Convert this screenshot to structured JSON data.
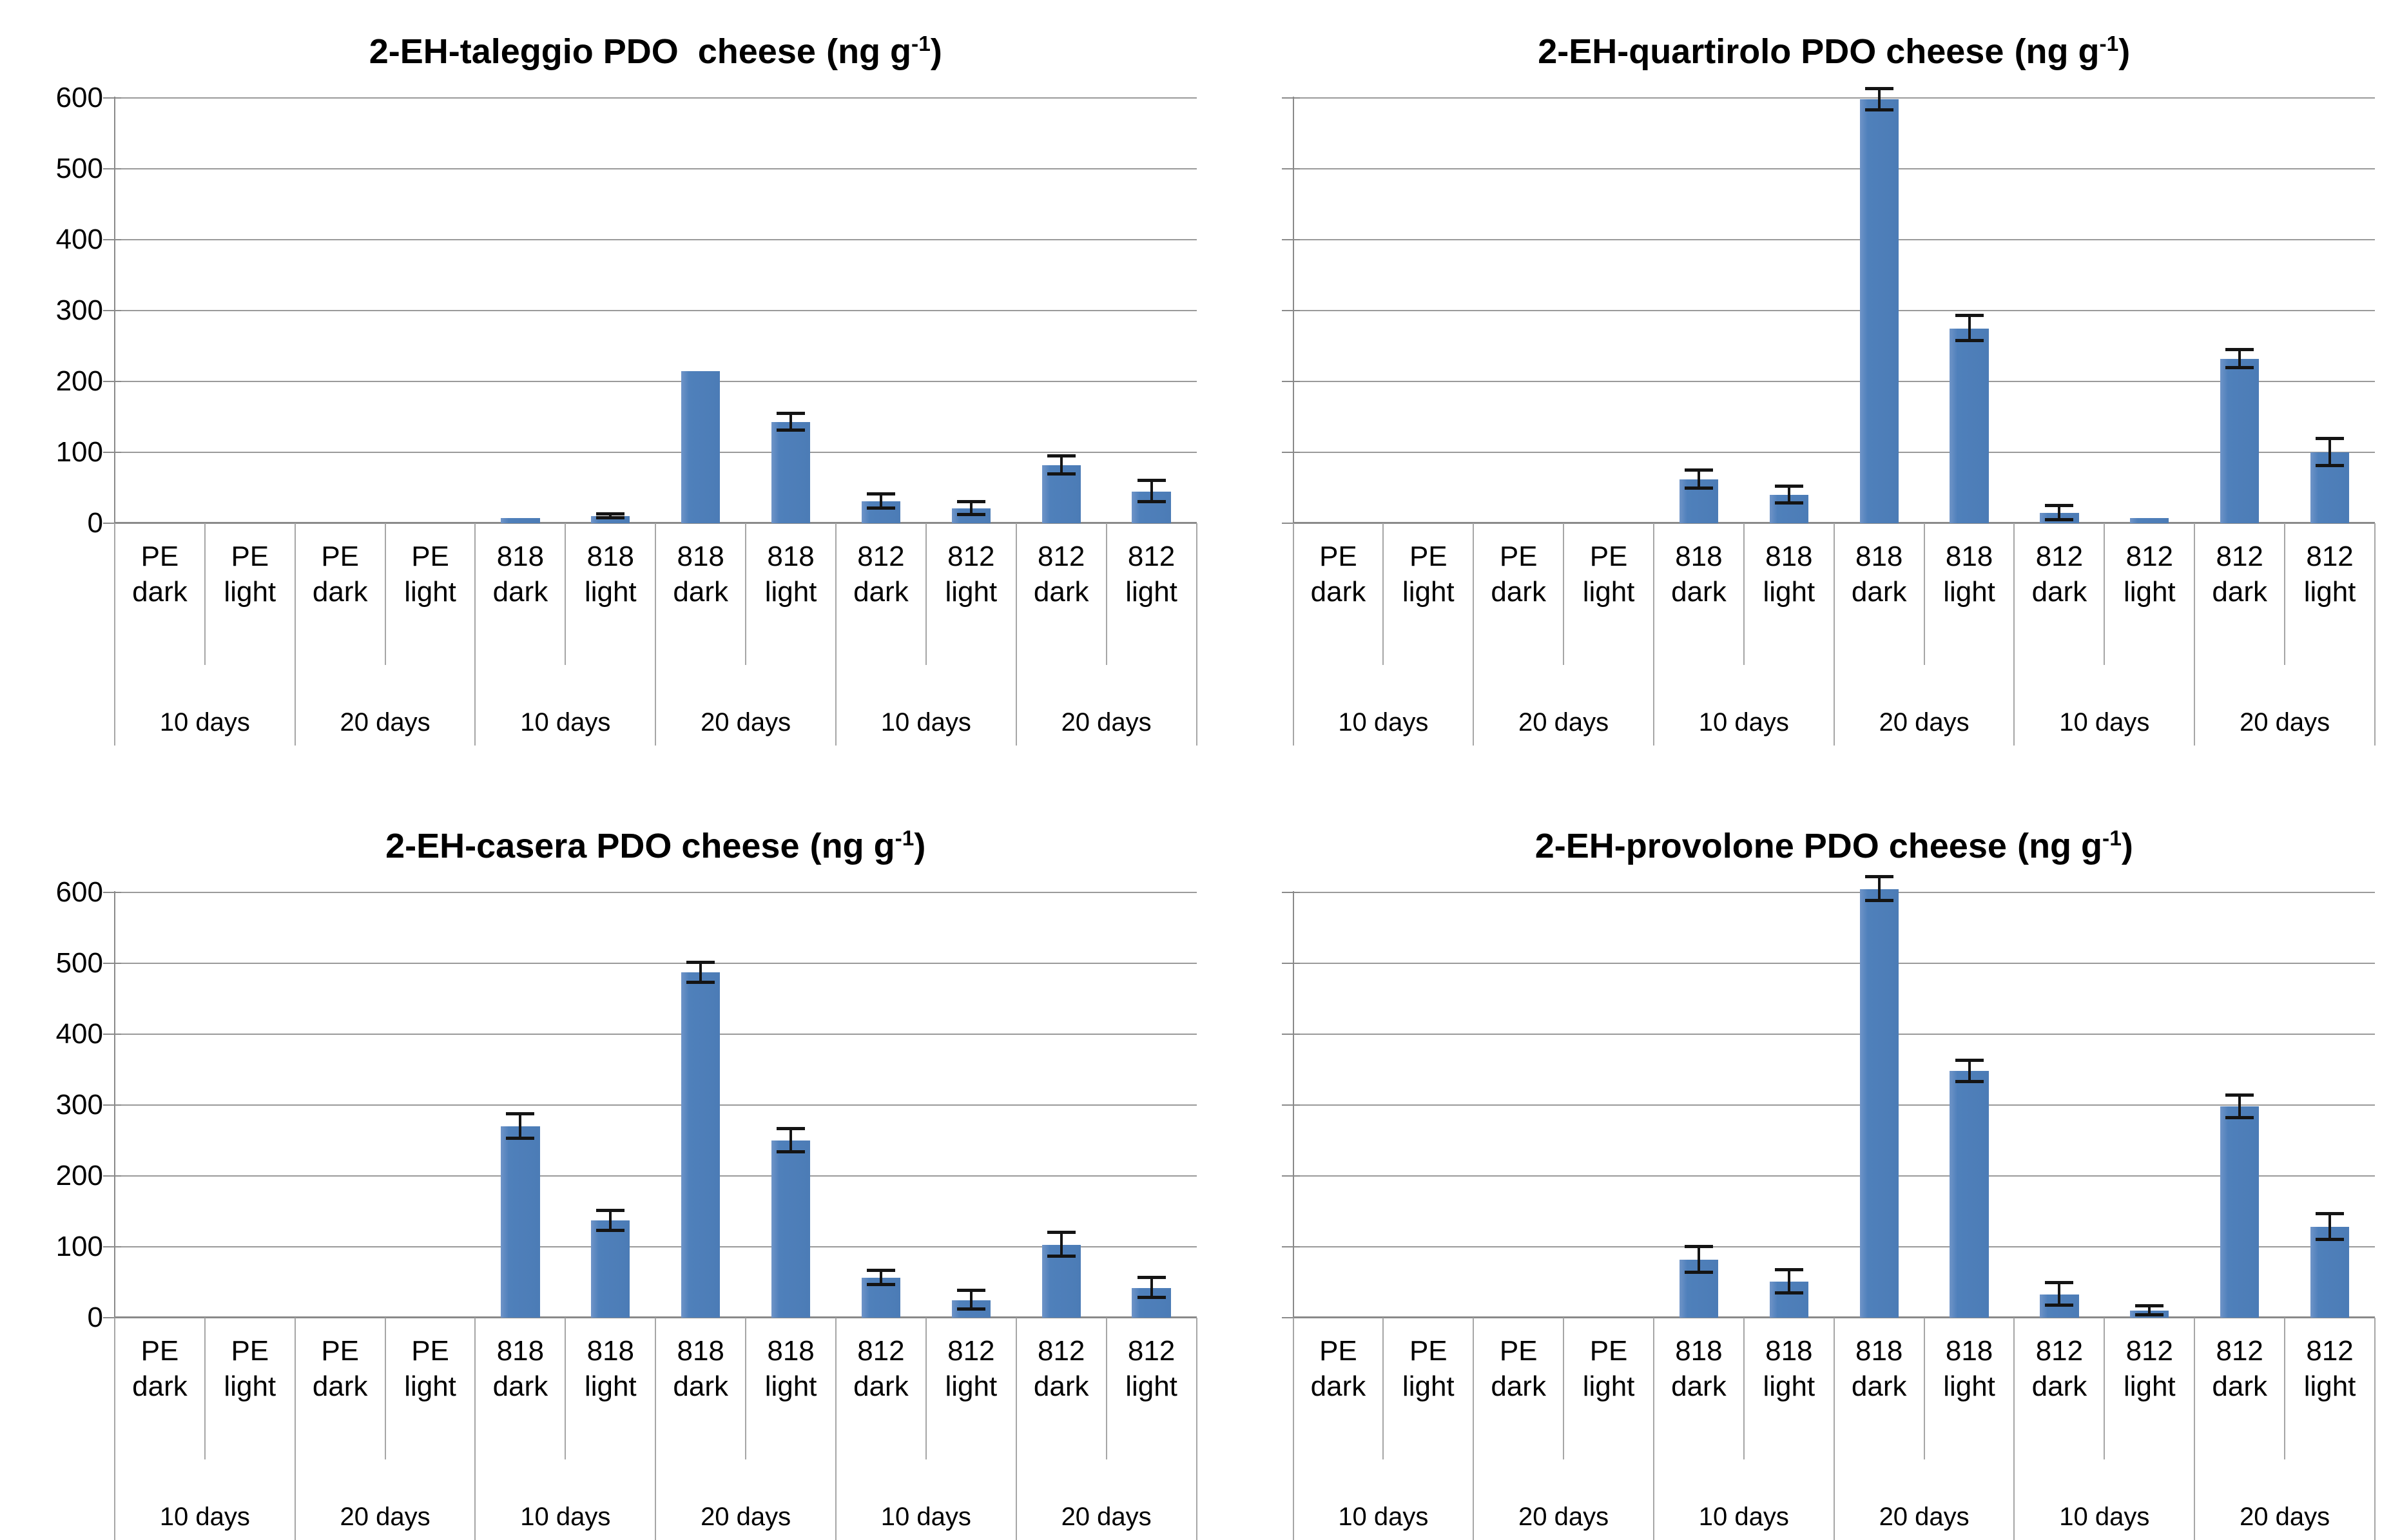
{
  "unit": {
    "pre": "(ng g",
    "sup": "-1",
    "post": ")"
  },
  "axis": {
    "y_ticks": [
      "600",
      "500",
      "400",
      "300",
      "200",
      "100",
      "0"
    ],
    "y_max": 600,
    "y_step": 100
  },
  "x_axis": {
    "cells": [
      {
        "pkg": "PE",
        "mode": "dark"
      },
      {
        "pkg": "PE",
        "mode": "light"
      },
      {
        "pkg": "PE",
        "mode": "dark"
      },
      {
        "pkg": "PE",
        "mode": "light"
      },
      {
        "pkg": "818",
        "mode": "dark"
      },
      {
        "pkg": "818",
        "mode": "light"
      },
      {
        "pkg": "818",
        "mode": "dark"
      },
      {
        "pkg": "818",
        "mode": "light"
      },
      {
        "pkg": "812",
        "mode": "dark"
      },
      {
        "pkg": "812",
        "mode": "light"
      },
      {
        "pkg": "812",
        "mode": "dark"
      },
      {
        "pkg": "812",
        "mode": "light"
      }
    ],
    "groups": [
      "10 days",
      "20 days",
      "10 days",
      "20 days",
      "10 days",
      "20 days"
    ]
  },
  "colors": {
    "bar": "#4f80bb",
    "gridline": "#9a9a9a",
    "axis": "#8a8a8a",
    "separator": "#a6a6a6",
    "error_bar": "#141414",
    "text": "#000000"
  },
  "chart_data": [
    {
      "type": "bar",
      "title_main": "2-EH-taleggio PDO  cheese",
      "ylabel": "",
      "xlabel": "",
      "ylim": [
        0,
        600
      ],
      "grid": true,
      "show_y_labels": true,
      "categories": [
        "PE dark 10 days",
        "PE light 10 days",
        "PE dark 20 days",
        "PE light 20 days",
        "818 dark 10 days",
        "818 light 10 days",
        "818 dark 20 days",
        "818 light 20 days",
        "812 dark 10 days",
        "812 light 10 days",
        "812 dark 20 days",
        "812 light 20 days"
      ],
      "values": [
        0,
        0,
        0,
        0,
        7,
        10,
        215,
        143,
        31,
        21,
        82,
        45
      ],
      "errors": [
        0,
        0,
        0,
        0,
        0,
        3,
        0,
        12,
        10,
        9,
        13,
        15
      ]
    },
    {
      "type": "bar",
      "title_main": "2-EH-quartirolo PDO cheese",
      "ylabel": "",
      "xlabel": "",
      "ylim": [
        0,
        600
      ],
      "grid": true,
      "show_y_labels": false,
      "categories": [
        "PE dark 10 days",
        "PE light 10 days",
        "PE dark 20 days",
        "PE light 20 days",
        "818 dark 10 days",
        "818 light 10 days",
        "818 dark 20 days",
        "818 light 20 days",
        "812 dark 10 days",
        "812 light 10 days",
        "812 dark 20 days",
        "812 light 20 days"
      ],
      "values": [
        0,
        0,
        0,
        0,
        62,
        40,
        598,
        275,
        15,
        7,
        232,
        100
      ],
      "errors": [
        0,
        0,
        0,
        0,
        13,
        12,
        15,
        18,
        10,
        0,
        13,
        19
      ]
    },
    {
      "type": "bar",
      "title_main": "2-EH-casera PDO cheese",
      "ylabel": "",
      "xlabel": "",
      "ylim": [
        0,
        600
      ],
      "grid": true,
      "show_y_labels": true,
      "categories": [
        "PE dark 10 days",
        "PE light 10 days",
        "PE dark 20 days",
        "PE light 20 days",
        "818 dark 10 days",
        "818 light 10 days",
        "818 dark 20 days",
        "818 light 20 days",
        "812 dark 10 days",
        "812 light 10 days",
        "812 dark 20 days",
        "812 light 20 days"
      ],
      "values": [
        0,
        0,
        0,
        0,
        270,
        137,
        487,
        250,
        56,
        25,
        103,
        42
      ],
      "errors": [
        0,
        0,
        0,
        0,
        17,
        14,
        14,
        16,
        10,
        13,
        17,
        14
      ]
    },
    {
      "type": "bar",
      "title_main": "2-EH-provolone PDO cheese",
      "ylabel": "",
      "xlabel": "",
      "ylim": [
        0,
        600
      ],
      "grid": true,
      "show_y_labels": false,
      "categories": [
        "PE dark 10 days",
        "PE light 10 days",
        "PE dark 20 days",
        "PE light 20 days",
        "818 dark 10 days",
        "818 light 10 days",
        "818 dark 20 days",
        "818 light 20 days",
        "812 dark 10 days",
        "812 light 10 days",
        "812 dark 20 days",
        "812 light 20 days"
      ],
      "values": [
        0,
        0,
        0,
        0,
        82,
        51,
        605,
        348,
        33,
        10,
        298,
        128
      ],
      "errors": [
        0,
        0,
        0,
        0,
        18,
        16,
        17,
        15,
        16,
        6,
        16,
        18
      ]
    }
  ]
}
